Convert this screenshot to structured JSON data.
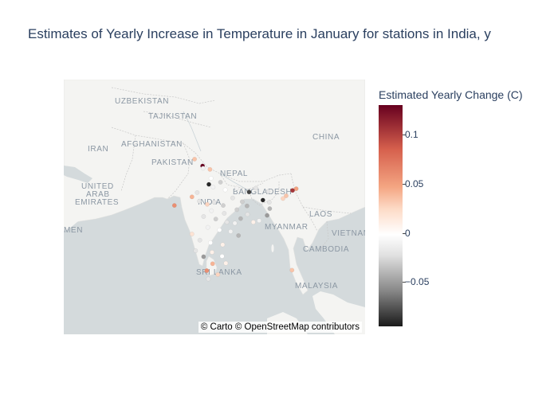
{
  "title": "Estimates of Yearly Increase in Temperature in January for stations in India, y",
  "map": {
    "attribution": "© Carto © OpenStreetMap contributors",
    "labels": [
      {
        "text": "UZBEKISTAN"
      },
      {
        "text": "TAJIKISTAN"
      },
      {
        "text": "AFGHANISTAN"
      },
      {
        "text": "IRAN"
      },
      {
        "text": "PAKISTAN"
      },
      {
        "text": "UNITED"
      },
      {
        "text": "ARAB"
      },
      {
        "text": "EMIRATES"
      },
      {
        "text": "MEN"
      },
      {
        "text": "CHINA"
      },
      {
        "text": "NEPAL"
      },
      {
        "text": "BANGLADESH"
      },
      {
        "text": "INDIA"
      },
      {
        "text": "LAOS"
      },
      {
        "text": "MYANMAR"
      },
      {
        "text": "VIETNAM"
      },
      {
        "text": "CAMBODIA"
      },
      {
        "text": "SRI LANKA"
      },
      {
        "text": "MALAYSIA"
      }
    ],
    "stations": [
      {
        "lon": 75.8,
        "lat": 31.6,
        "v": 0.13
      },
      {
        "lon": 75.9,
        "lat": 31.2,
        "v": -0.01
      },
      {
        "lon": 74.3,
        "lat": 32.8,
        "v": 0.04
      },
      {
        "lon": 77.2,
        "lat": 31.0,
        "v": 0.04
      },
      {
        "lon": 77.4,
        "lat": 29.4,
        "v": 0.0
      },
      {
        "lon": 74.8,
        "lat": 26.8,
        "v": -0.02
      },
      {
        "lon": 77.0,
        "lat": 28.3,
        "v": -0.09
      },
      {
        "lon": 79.2,
        "lat": 28.7,
        "v": -0.03
      },
      {
        "lon": 77.8,
        "lat": 27.8,
        "v": -0.01
      },
      {
        "lon": 80.1,
        "lat": 27.3,
        "v": 0.0
      },
      {
        "lon": 82.3,
        "lat": 27.6,
        "v": -0.01
      },
      {
        "lon": 85.9,
        "lat": 27.6,
        "v": -0.02
      },
      {
        "lon": 84.6,
        "lat": 26.9,
        "v": -0.08
      },
      {
        "lon": 88.2,
        "lat": 27.0,
        "v": -0.02
      },
      {
        "lon": 93.5,
        "lat": 27.5,
        "v": 0.06
      },
      {
        "lon": 92.8,
        "lat": 27.2,
        "v": 0.11
      },
      {
        "lon": 91.6,
        "lat": 26.2,
        "v": 0.04
      },
      {
        "lon": 91.0,
        "lat": 25.7,
        "v": 0.03
      },
      {
        "lon": 87.2,
        "lat": 25.4,
        "v": -0.09
      },
      {
        "lon": 88.4,
        "lat": 25.0,
        "v": -0.02
      },
      {
        "lon": 88.5,
        "lat": 23.8,
        "v": -0.04
      },
      {
        "lon": 88.0,
        "lat": 22.5,
        "v": -0.05
      },
      {
        "lon": 86.5,
        "lat": 21.5,
        "v": -0.01
      },
      {
        "lon": 73.8,
        "lat": 26.0,
        "v": 0.05
      },
      {
        "lon": 70.5,
        "lat": 24.4,
        "v": 0.07
      },
      {
        "lon": 75.2,
        "lat": 25.2,
        "v": -0.02
      },
      {
        "lon": 76.7,
        "lat": 24.6,
        "v": 0.03
      },
      {
        "lon": 78.0,
        "lat": 25.0,
        "v": -0.02
      },
      {
        "lon": 79.7,
        "lat": 24.4,
        "v": -0.03
      },
      {
        "lon": 81.5,
        "lat": 25.8,
        "v": -0.02
      },
      {
        "lon": 83.3,
        "lat": 25.1,
        "v": -0.03
      },
      {
        "lon": 84.2,
        "lat": 24.3,
        "v": -0.04
      },
      {
        "lon": 82.3,
        "lat": 23.6,
        "v": -0.03
      },
      {
        "lon": 79.9,
        "lat": 22.9,
        "v": -0.02
      },
      {
        "lon": 77.5,
        "lat": 23.4,
        "v": -0.01
      },
      {
        "lon": 76.0,
        "lat": 22.3,
        "v": -0.02
      },
      {
        "lon": 78.3,
        "lat": 21.8,
        "v": -0.03
      },
      {
        "lon": 80.4,
        "lat": 21.2,
        "v": -0.02
      },
      {
        "lon": 81.9,
        "lat": 21.0,
        "v": -0.01
      },
      {
        "lon": 83.0,
        "lat": 21.9,
        "v": -0.04
      },
      {
        "lon": 84.3,
        "lat": 22.7,
        "v": -0.02
      },
      {
        "lon": 85.4,
        "lat": 21.2,
        "v": 0.01
      },
      {
        "lon": 76.8,
        "lat": 20.2,
        "v": -0.01
      },
      {
        "lon": 79.0,
        "lat": 19.7,
        "v": 0.0
      },
      {
        "lon": 81.1,
        "lat": 19.4,
        "v": -0.01
      },
      {
        "lon": 82.6,
        "lat": 18.6,
        "v": -0.04
      },
      {
        "lon": 73.8,
        "lat": 18.9,
        "v": 0.02
      },
      {
        "lon": 75.3,
        "lat": 17.7,
        "v": -0.02
      },
      {
        "lon": 77.3,
        "lat": 17.2,
        "v": 0.0
      },
      {
        "lon": 79.6,
        "lat": 16.8,
        "v": 0.01
      },
      {
        "lon": 74.5,
        "lat": 15.6,
        "v": -0.02
      },
      {
        "lon": 76.0,
        "lat": 14.4,
        "v": -0.05
      },
      {
        "lon": 77.6,
        "lat": 15.3,
        "v": 0.01
      },
      {
        "lon": 79.5,
        "lat": 14.5,
        "v": 0.0
      },
      {
        "lon": 77.7,
        "lat": 13.0,
        "v": 0.05
      },
      {
        "lon": 80.2,
        "lat": 13.1,
        "v": 0.01
      },
      {
        "lon": 76.6,
        "lat": 11.6,
        "v": 0.07
      },
      {
        "lon": 78.7,
        "lat": 10.8,
        "v": 0.03
      },
      {
        "lon": 76.9,
        "lat": 9.9,
        "v": -0.02
      },
      {
        "lon": 92.7,
        "lat": 11.7,
        "v": 0.04
      }
    ]
  },
  "colorbar": {
    "title": "Estimated Yearly Change (C)",
    "min": -0.095,
    "max": 0.13,
    "zero_position": 0.585,
    "ticks": [
      {
        "label": "0.1",
        "value": 0.1
      },
      {
        "label": "0.05",
        "value": 0.05
      },
      {
        "label": "0",
        "value": 0.0
      },
      {
        "label": "−0.05",
        "value": -0.05
      }
    ],
    "colors": {
      "low": "#1a1a1a",
      "mid_low": "#878787",
      "light_low": "#e0e0e0",
      "zero": "#ffffff",
      "light_high": "#fddbc7",
      "mid_high": "#f4a582",
      "high_mid": "#d6604d",
      "high": "#67001f"
    }
  }
}
